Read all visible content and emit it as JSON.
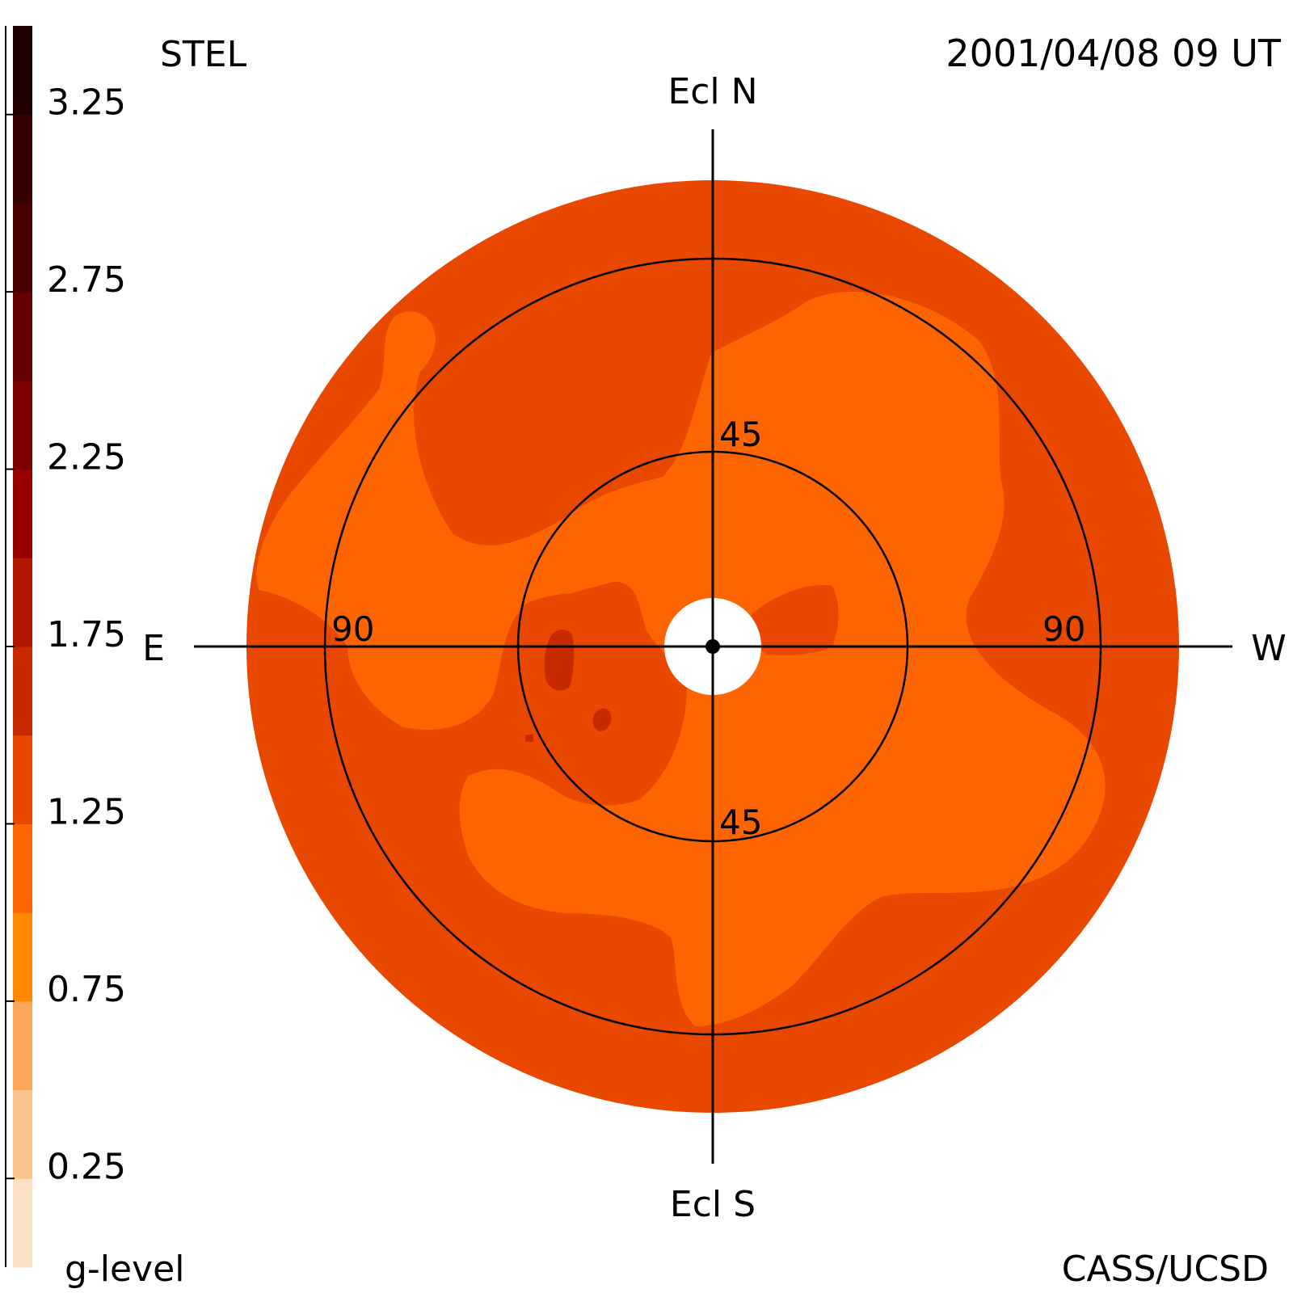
{
  "header": {
    "instrument": "STEL",
    "timestamp": "2001/04/08 09 UT",
    "credit": "CASS/UCSD"
  },
  "colorbar": {
    "title": "g-level",
    "tick_labels": [
      "3.25",
      "2.75",
      "2.25",
      "1.75",
      "1.25",
      "0.75",
      "0.25"
    ],
    "tick_values": [
      3.25,
      2.75,
      2.25,
      1.75,
      1.25,
      0.75,
      0.25
    ],
    "range": [
      0,
      3.5
    ],
    "colors": [
      "#fde0c3",
      "#fcc590",
      "#fca65a",
      "#ff8800",
      "#fe6500",
      "#e84800",
      "#c82a00",
      "#b01800",
      "#990000",
      "#7d0000",
      "#640000",
      "#4a0000",
      "#360000",
      "#220000"
    ]
  },
  "directions": {
    "north": "Ecl N",
    "south": "Ecl S",
    "east": "E",
    "west": "W"
  },
  "ring_labels": {
    "inner_top": "45",
    "inner_bottom": "45",
    "outer_left": "90",
    "outer_right": "90"
  },
  "chart_data": {
    "type": "heatmap",
    "projection": "fisheye sky map (elongation from Sun)",
    "rings_deg": [
      45,
      90
    ],
    "max_elongation_deg": 108,
    "regions": [
      {
        "level": 1.0,
        "description_color": "#e84800"
      },
      {
        "level": 0.75,
        "description_color": "#fe6500"
      },
      {
        "level": 1.5,
        "description_color": "#c82a00"
      }
    ]
  }
}
